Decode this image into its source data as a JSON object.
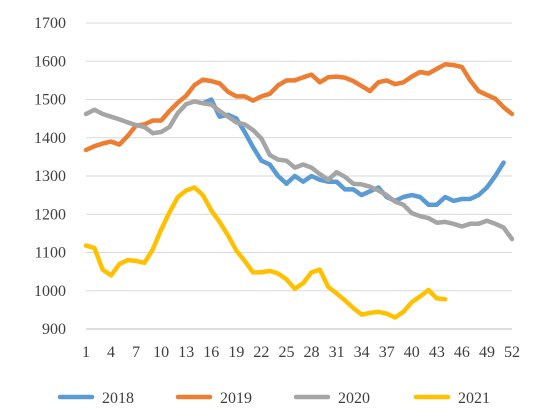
{
  "chart_data": {
    "type": "line",
    "x": [
      1,
      2,
      3,
      4,
      5,
      6,
      7,
      8,
      9,
      10,
      11,
      12,
      13,
      14,
      15,
      16,
      17,
      18,
      19,
      20,
      21,
      22,
      23,
      24,
      25,
      26,
      27,
      28,
      29,
      30,
      31,
      32,
      33,
      34,
      35,
      36,
      37,
      38,
      39,
      40,
      41,
      42,
      43,
      44,
      45,
      46,
      47,
      48,
      49,
      50,
      51,
      52
    ],
    "x_tick_labels": [
      "1",
      "4",
      "7",
      "10",
      "13",
      "16",
      "19",
      "22",
      "25",
      "28",
      "31",
      "34",
      "37",
      "40",
      "43",
      "46",
      "49",
      "52"
    ],
    "x_tick_values": [
      1,
      4,
      7,
      10,
      13,
      16,
      19,
      22,
      25,
      28,
      31,
      34,
      37,
      40,
      43,
      46,
      49,
      52
    ],
    "y_ticks": [
      900,
      1000,
      1100,
      1200,
      1300,
      1400,
      1500,
      1600,
      1700
    ],
    "ylim": [
      900,
      1700
    ],
    "xlim": [
      1,
      52
    ],
    "grid": "horizontal",
    "legend_position": "bottom",
    "series": [
      {
        "name": "2018",
        "color": "#5B9BD5",
        "values": [
          null,
          null,
          null,
          null,
          null,
          null,
          null,
          null,
          null,
          null,
          null,
          null,
          null,
          null,
          1490,
          1500,
          1455,
          1460,
          1450,
          1415,
          1375,
          1340,
          1330,
          1300,
          1280,
          1300,
          1285,
          1300,
          1290,
          1285,
          1285,
          1265,
          1265,
          1250,
          1260,
          1270,
          1245,
          1235,
          1245,
          1250,
          1245,
          1225,
          1225,
          1245,
          1235,
          1240,
          1240,
          1250,
          1270,
          1300,
          1335,
          null
        ]
      },
      {
        "name": "2019",
        "color": "#ED7D31",
        "values": [
          1368,
          1378,
          1385,
          1390,
          1382,
          1405,
          1432,
          1435,
          1445,
          1445,
          1470,
          1492,
          1510,
          1538,
          1552,
          1548,
          1542,
          1520,
          1508,
          1508,
          1497,
          1508,
          1515,
          1537,
          1550,
          1550,
          1558,
          1565,
          1545,
          1558,
          1560,
          1557,
          1548,
          1535,
          1522,
          1545,
          1550,
          1540,
          1545,
          1560,
          1572,
          1568,
          1580,
          1592,
          1590,
          1585,
          1550,
          1522,
          1512,
          1502,
          1480,
          1462
        ]
      },
      {
        "name": "2020",
        "color": "#A5A5A5",
        "values": [
          1462,
          1473,
          1462,
          1455,
          1448,
          1440,
          1433,
          1428,
          1412,
          1415,
          1428,
          1465,
          1488,
          1495,
          1490,
          1487,
          1470,
          1455,
          1440,
          1435,
          1420,
          1398,
          1355,
          1343,
          1340,
          1322,
          1330,
          1322,
          1305,
          1290,
          1310,
          1298,
          1280,
          1278,
          1272,
          1262,
          1250,
          1233,
          1225,
          1203,
          1195,
          1190,
          1178,
          1180,
          1175,
          1168,
          1175,
          1175,
          1183,
          1175,
          1165,
          1135
        ]
      },
      {
        "name": "2021",
        "color": "#FFC000",
        "values": [
          1118,
          1112,
          1055,
          1040,
          1070,
          1080,
          1078,
          1073,
          1108,
          1160,
          1205,
          1245,
          1262,
          1270,
          1250,
          1210,
          1180,
          1145,
          1105,
          1078,
          1048,
          1048,
          1052,
          1045,
          1030,
          1005,
          1020,
          1048,
          1055,
          1010,
          993,
          975,
          955,
          938,
          942,
          945,
          940,
          930,
          945,
          970,
          985,
          1002,
          980,
          978,
          null,
          null,
          null,
          null,
          null,
          null,
          null,
          null
        ]
      }
    ]
  }
}
